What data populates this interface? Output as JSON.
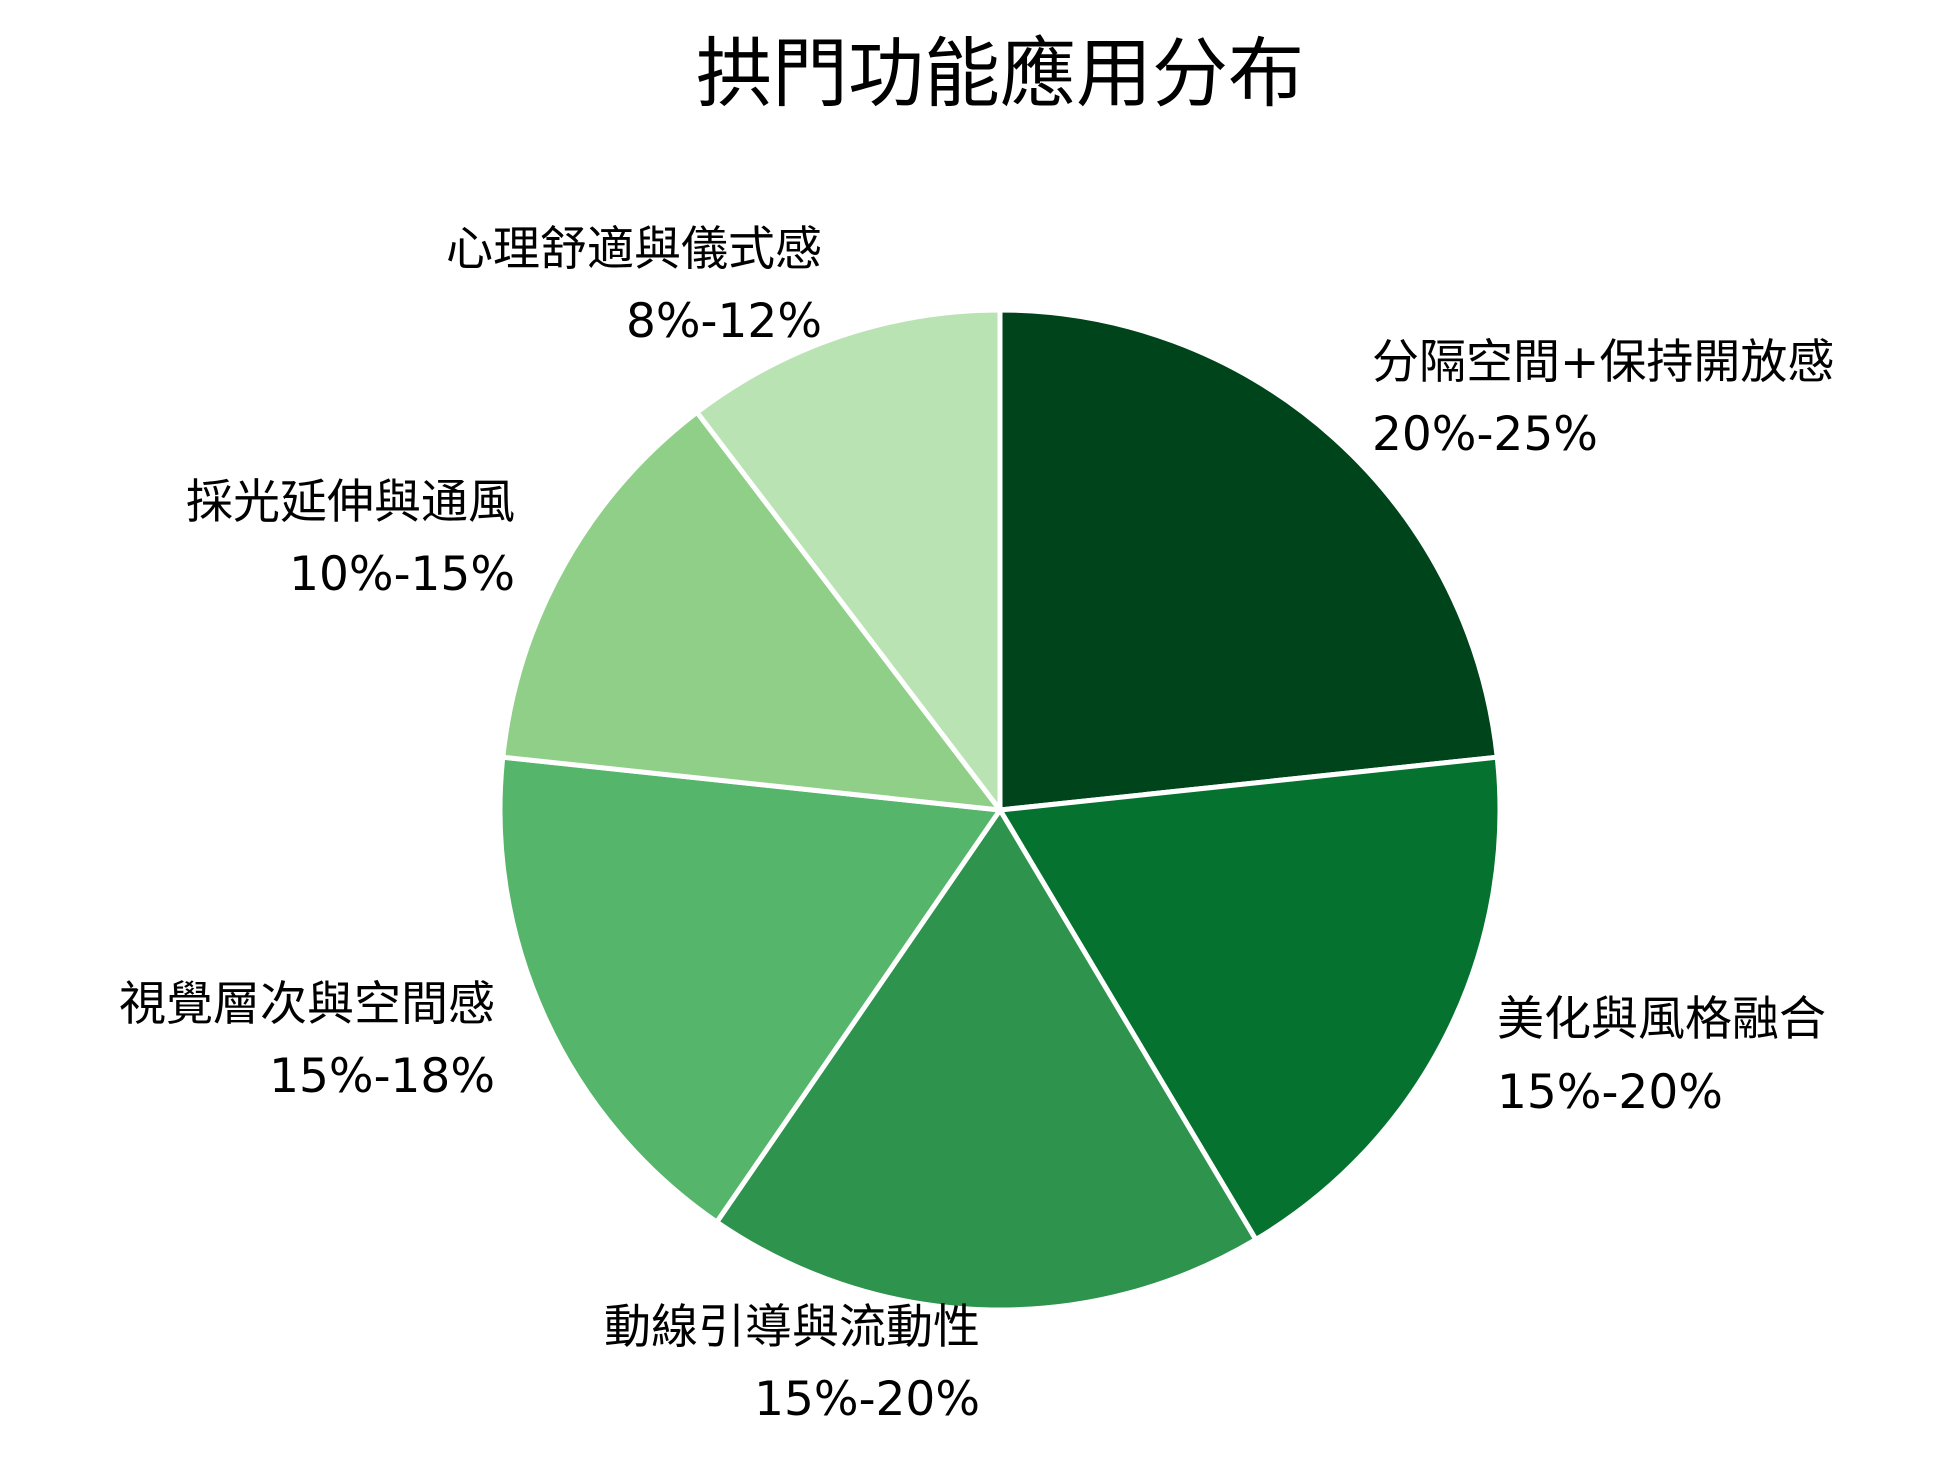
{
  "chart_data": {
    "type": "pie",
    "title": "拱門功能應用分布",
    "start_angle_deg": 0,
    "direction": "clockwise",
    "slices": [
      {
        "label": "分隔空間+保持開放感",
        "range_text": "20%-25%",
        "value": 22.5,
        "color": "#00441b"
      },
      {
        "label": "美化與風格融合",
        "range_text": "15%-20%",
        "value": 17.5,
        "color": "#06722f"
      },
      {
        "label": "動線引導與流動性",
        "range_text": "15%-20%",
        "value": 17.5,
        "color": "#2d934d"
      },
      {
        "label": "視覺層次與空間感",
        "range_text": "15%-18%",
        "value": 16.5,
        "color": "#55b56b"
      },
      {
        "label": "採光延伸與通風",
        "range_text": "10%-15%",
        "value": 12.5,
        "color": "#8fcf88"
      },
      {
        "label": "心理舒適與儀式感",
        "range_text": "8%-12%",
        "value": 10,
        "color": "#b9e3b2"
      }
    ]
  }
}
